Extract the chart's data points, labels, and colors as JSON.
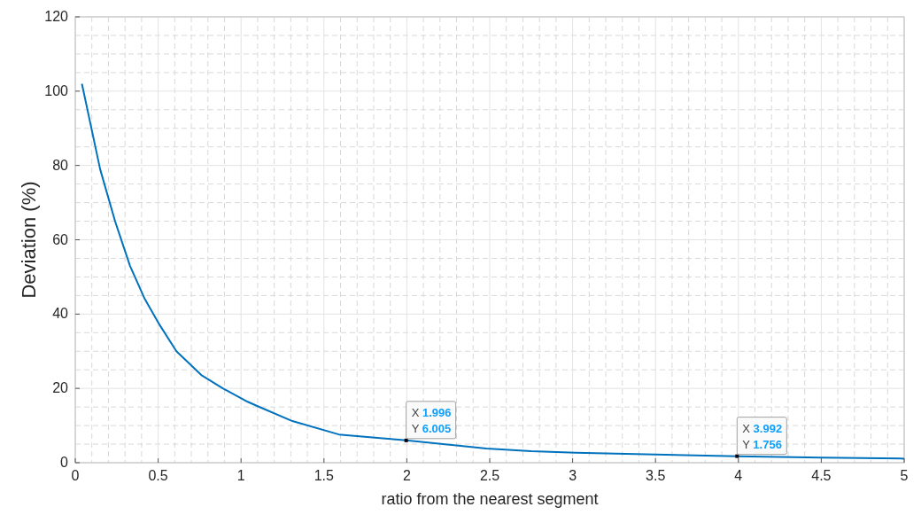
{
  "chart_data": {
    "type": "line",
    "xlabel": "ratio from the nearest segment",
    "ylabel": "Deviation (%)",
    "x": [
      0.04,
      0.15,
      0.24,
      0.33,
      0.42,
      0.51,
      0.61,
      0.76,
      0.89,
      1.04,
      1.1,
      1.31,
      1.59,
      1.996,
      2.48,
      2.75,
      3.02,
      3.5,
      3.992,
      4.5,
      5
    ],
    "series": [
      {
        "color": "#0072bd",
        "values": [
          102,
          79,
          65,
          53,
          44,
          37,
          30,
          23.6,
          20,
          16.4,
          15.2,
          11.2,
          7.6,
          6.005,
          3.8,
          3.1,
          2.7,
          2.2,
          1.756,
          1.4,
          1.1
        ]
      }
    ],
    "xlim": [
      0,
      5
    ],
    "xticks": [
      0,
      0.5,
      1,
      1.5,
      2,
      2.5,
      3,
      3.5,
      4,
      4.5,
      5
    ],
    "ylim": [
      0,
      120
    ],
    "yticks": [
      0,
      20,
      40,
      60,
      80,
      100,
      120
    ],
    "grid": true,
    "marker": "none",
    "line_style": "solid",
    "annotations": [
      {
        "text": "X 1.996\nY 6.005",
        "x": 1.996,
        "y": 6.005
      },
      {
        "text": "X 3.992\nY 1.756",
        "x": 3.992,
        "y": 1.756
      }
    ]
  }
}
